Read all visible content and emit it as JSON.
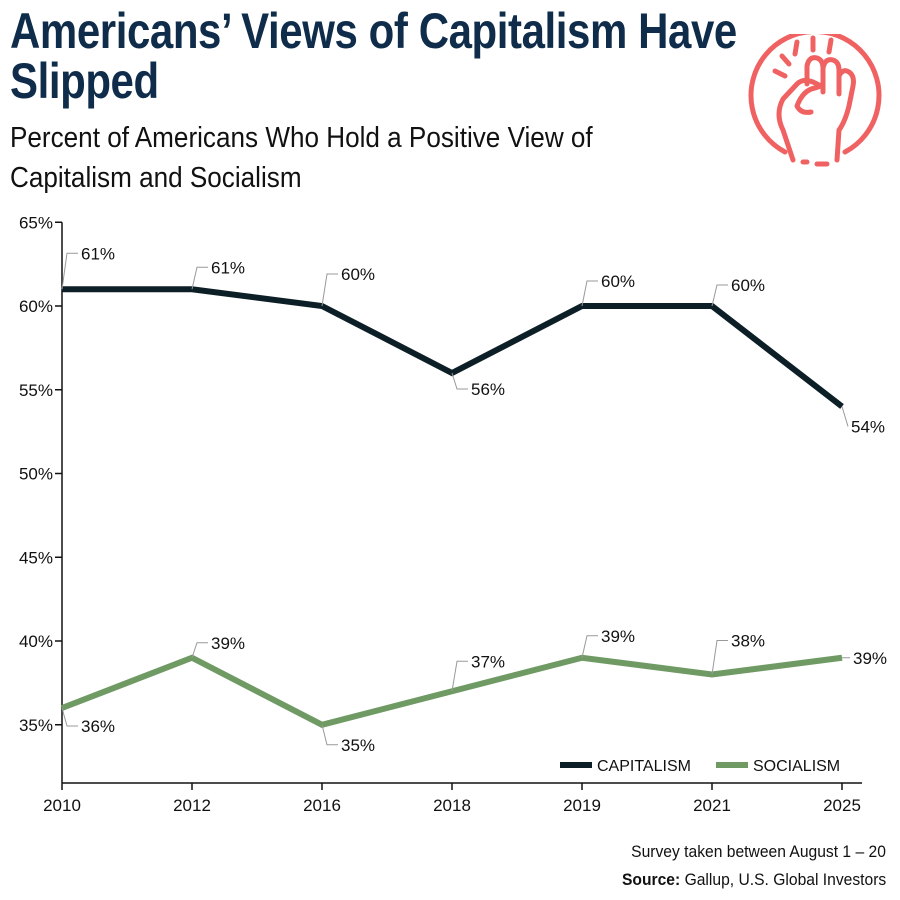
{
  "title": "Americans’ Views of Capitalism Have Slipped",
  "subtitle": "Percent of Americans Who Hold a Positive View of Capitalism and Socialism",
  "icon": "raised-fist-icon",
  "colors": {
    "title": "#0f2d4a",
    "capitalism": "#0d1f26",
    "socialism": "#6f9a64",
    "icon": "#f06262"
  },
  "chart_data": {
    "type": "line",
    "categories": [
      "2010",
      "2012",
      "2016",
      "2018",
      "2019",
      "2021",
      "2025"
    ],
    "series": [
      {
        "name": "CAPITALISM",
        "values": [
          61,
          61,
          60,
          56,
          60,
          60,
          54
        ],
        "labels": [
          "61%",
          "61%",
          "60%",
          "56%",
          "60%",
          "60%",
          "54%"
        ]
      },
      {
        "name": "SOCIALISM",
        "values": [
          36,
          39,
          35,
          37,
          39,
          38,
          39
        ],
        "labels": [
          "36%",
          "39%",
          "35%",
          "37%",
          "39%",
          "38%",
          "39%"
        ]
      }
    ],
    "yticks": [
      "35%",
      "40%",
      "45%",
      "50%",
      "55%",
      "60%",
      "65%"
    ],
    "ytick_values": [
      35,
      40,
      45,
      50,
      55,
      60,
      65
    ],
    "ylim": [
      31.5,
      65
    ],
    "grid": false,
    "legend": "bottom-right"
  },
  "footer": {
    "note": "Survey taken between August 1 – 20",
    "source_label": "Source:",
    "source": "Gallup, U.S. Global Investors"
  }
}
